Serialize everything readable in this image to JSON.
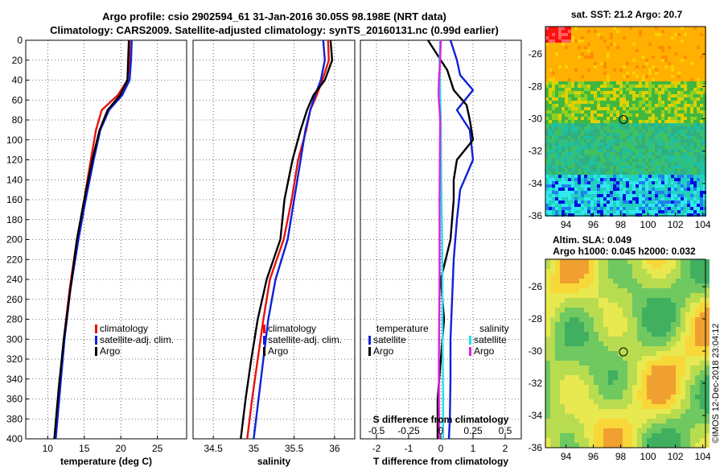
{
  "title": {
    "line1": "Argo profile: csio 2902594_61 31-Jan-2016 30.05S 98.198E (NRT data)",
    "line2": "Climatology: CARS2009. Satellite-adjusted climatology: synTS_20160131.nc (0.99d earlier)"
  },
  "colors": {
    "climatology": "#e8110e",
    "satellite_adj": "#1020d8",
    "argo": "#000000",
    "salinity_sat": "#20e0ee",
    "salinity_argo": "#e020e0"
  },
  "chart_data": [
    {
      "type": "line",
      "name": "temperature-profile",
      "xlabel": "temperature (deg C)",
      "ylabel": "",
      "xlim": [
        7,
        29
      ],
      "ylim": [
        0,
        400
      ],
      "x_ticks": [
        "10",
        "15",
        "20",
        "25"
      ],
      "x_tick_values": [
        10,
        15,
        20,
        25
      ],
      "y_ticks": [
        "0",
        "20",
        "40",
        "60",
        "80",
        "100",
        "120",
        "140",
        "160",
        "180",
        "200",
        "220",
        "240",
        "260",
        "280",
        "300",
        "320",
        "340",
        "360",
        "380",
        "400"
      ],
      "legend": [
        "climatology",
        "satellite-adj. clim.",
        "Argo"
      ],
      "series": [
        {
          "name": "climatology",
          "depth": [
            0,
            20,
            40,
            55,
            70,
            90,
            120,
            160,
            200,
            250,
            300,
            350,
            400
          ],
          "values": [
            21.2,
            21.2,
            20.9,
            19.6,
            17.4,
            16.6,
            15.9,
            15.0,
            14.0,
            13.0,
            12.2,
            11.6,
            11.0
          ]
        },
        {
          "name": "satellite-adj. clim.",
          "depth": [
            0,
            20,
            40,
            55,
            70,
            90,
            120,
            160,
            200,
            250,
            300,
            350,
            400
          ],
          "values": [
            21.5,
            21.4,
            21.2,
            20.2,
            18.4,
            17.2,
            16.3,
            15.2,
            14.2,
            13.1,
            12.3,
            11.7,
            11.1
          ]
        },
        {
          "name": "Argo",
          "depth": [
            0,
            20,
            40,
            55,
            70,
            90,
            120,
            160,
            200,
            250,
            300,
            350,
            400
          ],
          "values": [
            21.1,
            21.0,
            20.9,
            19.9,
            18.2,
            17.1,
            16.1,
            15.0,
            14.0,
            13.1,
            12.2,
            11.5,
            10.9
          ]
        }
      ]
    },
    {
      "type": "line",
      "name": "salinity-profile",
      "xlabel": "salinity",
      "xlim": [
        34.25,
        36.25
      ],
      "ylim": [
        0,
        400
      ],
      "x_ticks": [
        "34.5",
        "35",
        "35.5",
        "36"
      ],
      "x_tick_values": [
        34.5,
        35,
        35.5,
        36
      ],
      "legend": [
        "climatology",
        "satellite-adj. clim.",
        "Argo"
      ],
      "series": [
        {
          "name": "climatology",
          "depth": [
            0,
            20,
            40,
            55,
            70,
            90,
            120,
            160,
            200,
            240,
            280,
            320,
            360,
            400
          ],
          "values": [
            35.92,
            35.93,
            35.85,
            35.78,
            35.7,
            35.65,
            35.55,
            35.47,
            35.37,
            35.2,
            35.12,
            35.05,
            34.98,
            34.92
          ]
        },
        {
          "name": "satellite-adj. clim.",
          "depth": [
            0,
            20,
            40,
            55,
            70,
            90,
            120,
            160,
            200,
            240,
            280,
            320,
            360,
            400
          ],
          "values": [
            35.86,
            35.88,
            35.83,
            35.76,
            35.7,
            35.64,
            35.58,
            35.5,
            35.42,
            35.27,
            35.18,
            35.12,
            35.06,
            35.0
          ]
        },
        {
          "name": "Argo",
          "depth": [
            0,
            20,
            40,
            55,
            70,
            90,
            120,
            160,
            200,
            240,
            280,
            320,
            360,
            400
          ],
          "values": [
            35.95,
            35.97,
            35.88,
            35.74,
            35.66,
            35.58,
            35.48,
            35.38,
            35.33,
            35.16,
            35.05,
            34.97,
            34.9,
            34.84
          ]
        }
      ]
    },
    {
      "type": "line",
      "name": "difference-profile",
      "xlabel": "T difference from climatology",
      "xlabel_top": "S difference from climatology",
      "xlim": [
        -2.5,
        2.5
      ],
      "ylim": [
        0,
        400
      ],
      "x_ticks": [
        "-2",
        "-1",
        "0",
        "1",
        "2"
      ],
      "x_tick_values": [
        -2,
        -1,
        0,
        1,
        2
      ],
      "s_ticks": [
        "-0.5",
        "-0.25",
        "0",
        "0.25",
        "0.5"
      ],
      "s_tick_values": [
        -0.5,
        -0.25,
        0,
        0.25,
        0.5
      ],
      "legend_temperature_title": "temperature",
      "legend_salinity_title": "salinity",
      "legend_labels": [
        "satellite",
        "Argo",
        "satellite",
        "Argo"
      ],
      "series": [
        {
          "name": "T satellite",
          "depth": [
            0,
            20,
            35,
            50,
            70,
            90,
            120,
            150,
            180,
            220,
            260,
            300,
            340,
            380,
            400
          ],
          "values": [
            0.3,
            0.5,
            0.6,
            1.0,
            0.5,
            0.9,
            1.0,
            0.6,
            0.5,
            0.4,
            0.35,
            0.3,
            0.3,
            0.28,
            0.25
          ]
        },
        {
          "name": "T Argo",
          "depth": [
            0,
            10,
            30,
            50,
            65,
            80,
            100,
            120,
            140,
            160,
            200,
            240,
            280,
            320,
            360,
            400
          ],
          "values": [
            -0.4,
            -0.2,
            0.2,
            0.4,
            0.8,
            0.9,
            1.0,
            0.5,
            0.4,
            0.4,
            0.3,
            0.0,
            0.1,
            0.0,
            -0.1,
            -0.1
          ]
        },
        {
          "name": "S satellite",
          "depth": [
            0,
            20,
            40,
            55,
            80,
            120,
            160,
            200,
            240,
            280,
            320,
            360,
            400
          ],
          "values": [
            -0.02,
            -0.04,
            -0.03,
            -0.02,
            0.0,
            0.01,
            0.02,
            0.04,
            0.05,
            0.05,
            0.06,
            0.07,
            0.07
          ]
        },
        {
          "name": "S Argo",
          "depth": [
            0,
            20,
            40,
            55,
            80,
            120,
            160,
            200,
            240,
            280,
            320,
            360,
            400
          ],
          "values": [
            0.0,
            -0.02,
            -0.06,
            -0.07,
            -0.02,
            -0.03,
            -0.04,
            -0.04,
            -0.04,
            -0.05,
            -0.06,
            -0.06,
            -0.05
          ]
        }
      ]
    },
    {
      "type": "heatmap",
      "name": "sst-map",
      "title": "sat. SST: 21.2 Argo: 20.7",
      "x_ticks": [
        "94",
        "96",
        "98",
        "100",
        "102",
        "104"
      ],
      "x_tick_values": [
        94,
        96,
        98,
        100,
        102,
        104
      ],
      "y_ticks": [
        "-26",
        "-28",
        "-30",
        "-32",
        "-34",
        "-36"
      ],
      "y_tick_values": [
        -26,
        -28,
        -30,
        -32,
        -34,
        -36
      ],
      "xlim": [
        92.5,
        104.2
      ],
      "ylim": [
        -36,
        -24.3
      ],
      "marker": {
        "lon": 98.198,
        "lat": -30.05
      }
    },
    {
      "type": "heatmap",
      "name": "sla-map",
      "title_line1": "Altim. SLA: 0.049",
      "title_line2": "Argo h1000: 0.045 h2000: 0.032",
      "x_ticks": [
        "94",
        "96",
        "98",
        "100",
        "102",
        "104"
      ],
      "x_tick_values": [
        94,
        96,
        98,
        100,
        102,
        104
      ],
      "y_ticks": [
        "-26",
        "-28",
        "-30",
        "-32",
        "-34",
        "-36"
      ],
      "y_tick_values": [
        -26,
        -28,
        -30,
        -32,
        -34,
        -36
      ],
      "xlim": [
        92.5,
        104.2
      ],
      "ylim": [
        -36,
        -24.3
      ],
      "marker": {
        "lon": 98.198,
        "lat": -30.05
      }
    }
  ],
  "footer_stamp": "©IMOS 12-Dec-2018 23:04:12"
}
